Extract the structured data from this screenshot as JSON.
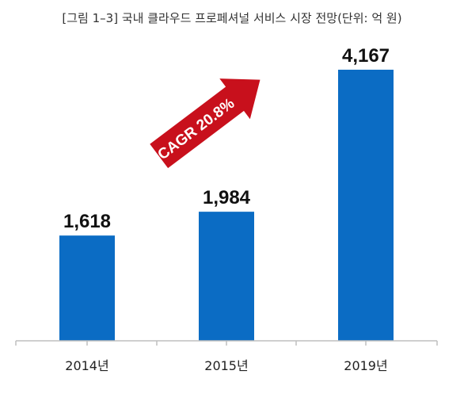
{
  "chart_data": {
    "type": "bar",
    "title": "[그림 1–3] 국내 클라우드 프로페셔널 서비스 시장 전망(단위: 억 원)",
    "categories": [
      "2014년",
      "2015년",
      "2019년"
    ],
    "values": [
      1618,
      1984,
      4167
    ],
    "value_labels": [
      "1,618",
      "1,984",
      "4,167"
    ],
    "ylim": [
      0,
      4800
    ],
    "grid": false,
    "bar_color": "#0b6cc4",
    "annotation": {
      "text": "CAGR 20.8%",
      "arrow_color": "#c8101c",
      "shape": "diagonal-up-right-arrow"
    }
  }
}
